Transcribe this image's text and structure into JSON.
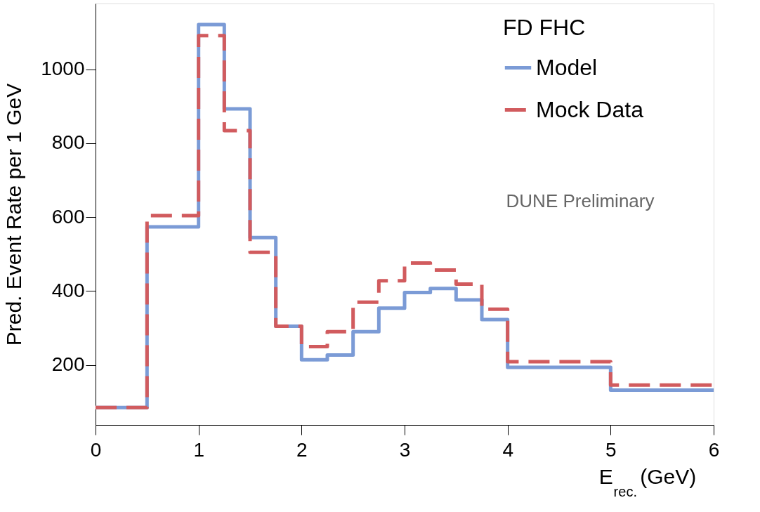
{
  "chart_data": {
    "type": "histogram",
    "xlabel": "E$_{rec.}$ (GeV)",
    "ylabel": "Pred. Event Rate per 1 GeV",
    "legend_title": "FD FHC",
    "legend": "top right",
    "grid": false,
    "bins": [
      0,
      0.5,
      1,
      1.25,
      1.5,
      1.75,
      2,
      2.25,
      2.5,
      2.75,
      3,
      3.25,
      3.5,
      3.75,
      4,
      5,
      6
    ],
    "series": [
      {
        "name": "Model",
        "color": "#7b9bd6",
        "line_style": "solid",
        "values": [
          85,
          574,
          1121,
          893,
          545,
          305,
          214,
          227,
          290,
          354,
          396,
          407,
          376,
          323,
          194,
          132
        ]
      },
      {
        "name": "Mock Data",
        "color": "#d15b5e",
        "line_style": "dashed",
        "values": [
          85,
          604,
          1091,
          834,
          505,
          305,
          250,
          290,
          370,
          428,
          476,
          457,
          419,
          351,
          209,
          146
        ]
      }
    ],
    "xlim": [
      0,
      6
    ],
    "ylim": [
      38,
      1178
    ],
    "xticks": [
      0,
      1,
      2,
      3,
      4,
      5,
      6
    ],
    "yticks": [
      200,
      400,
      600,
      800,
      1000
    ],
    "annotations": [
      "DUNE Preliminary"
    ]
  }
}
